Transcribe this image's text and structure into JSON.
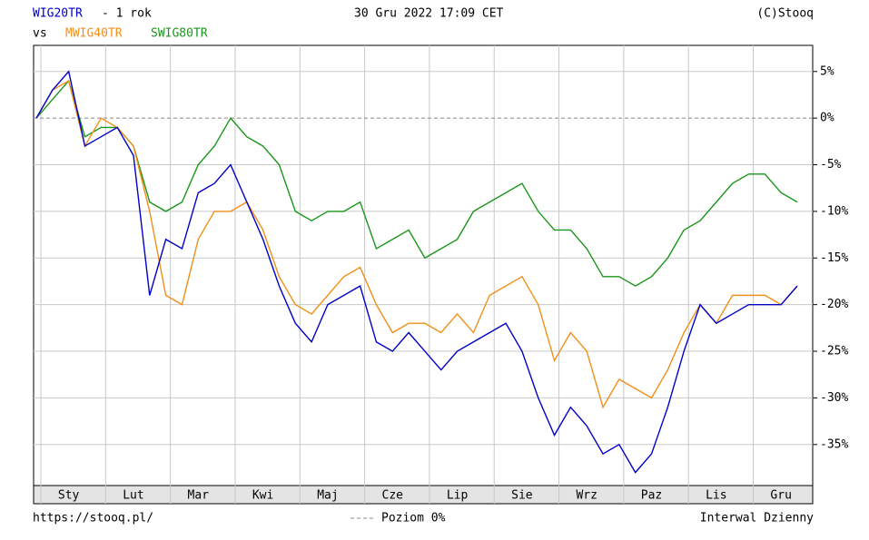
{
  "chart_data": {
    "type": "line",
    "subtitle": "- 1 rok",
    "date": "30 Gru 2022 17:09 CET",
    "source": "(C)Stooq",
    "vs": "vs",
    "url": "https://stooq.pl/",
    "zero_line_label": "Poziom 0%",
    "interval": "Interwal Dzienny",
    "categories": [
      null,
      null,
      "Sty",
      null,
      null,
      null,
      "Lut",
      null,
      null,
      null,
      "Mar",
      null,
      null,
      null,
      "Kwi",
      null,
      null,
      null,
      "Maj",
      null,
      null,
      null,
      "Cze",
      null,
      null,
      null,
      "Lip",
      null,
      null,
      null,
      "Sie",
      null,
      null,
      null,
      "Wrz",
      null,
      null,
      null,
      "Paz",
      null,
      null,
      null,
      "Lis",
      null,
      null,
      null,
      "Gru",
      null
    ],
    "series": [
      {
        "name": "WIG20TR",
        "color": "#0000c8",
        "values": [
          0,
          3,
          5,
          -3,
          -2,
          -1,
          -4,
          -19,
          -13,
          -14,
          -8,
          -7,
          -5,
          -9,
          -13,
          -18,
          -22,
          -24,
          -20,
          -19,
          -18,
          -24,
          -25,
          -23,
          -25,
          -27,
          -25,
          -24,
          -23,
          -22,
          -25,
          -30,
          -34,
          -31,
          -33,
          -36,
          -35,
          -38,
          -36,
          -31,
          -25,
          -20,
          -22,
          -21,
          -20,
          -20,
          -20,
          -18
        ]
      },
      {
        "name": "MWIG40TR",
        "color": "#f0901a",
        "values": [
          0,
          3,
          4,
          -3,
          0,
          -1,
          -3,
          -10,
          -19,
          -20,
          -13,
          -10,
          -10,
          -9,
          -12,
          -17,
          -20,
          -21,
          -19,
          -17,
          -16,
          -20,
          -23,
          -22,
          -22,
          -23,
          -21,
          -23,
          -19,
          -18,
          -17,
          -20,
          -26,
          -23,
          -25,
          -31,
          -28,
          -29,
          -30,
          -27,
          -23,
          -20,
          -22,
          -19,
          -19,
          -19,
          -20,
          -18
        ]
      },
      {
        "name": "SWIG80TR",
        "color": "#1a961a",
        "values": [
          0,
          2,
          4,
          -2,
          -1,
          -1,
          -3,
          -9,
          -10,
          -9,
          -5,
          -3,
          0,
          -2,
          -3,
          -5,
          -10,
          -11,
          -10,
          -10,
          -9,
          -14,
          -13,
          -12,
          -15,
          -14,
          -13,
          -10,
          -9,
          -8,
          -7,
          -10,
          -12,
          -12,
          -14,
          -17,
          -17,
          -18,
          -17,
          -15,
          -12,
          -11,
          -9,
          -7,
          -6,
          -6,
          -8,
          -9
        ]
      }
    ],
    "ylim": [
      -39.4,
      7.8
    ],
    "yticks": [
      {
        "value": 5,
        "label": "5%"
      },
      {
        "value": 0,
        "label": "0%"
      },
      {
        "value": -5,
        "label": "-5%"
      },
      {
        "value": -10,
        "label": "-10%"
      },
      {
        "value": -15,
        "label": "-15%"
      },
      {
        "value": -20,
        "label": "-20%"
      },
      {
        "value": -25,
        "label": "-25%"
      },
      {
        "value": -30,
        "label": "-30%"
      },
      {
        "value": -35,
        "label": "-35%"
      }
    ],
    "grid": true
  }
}
